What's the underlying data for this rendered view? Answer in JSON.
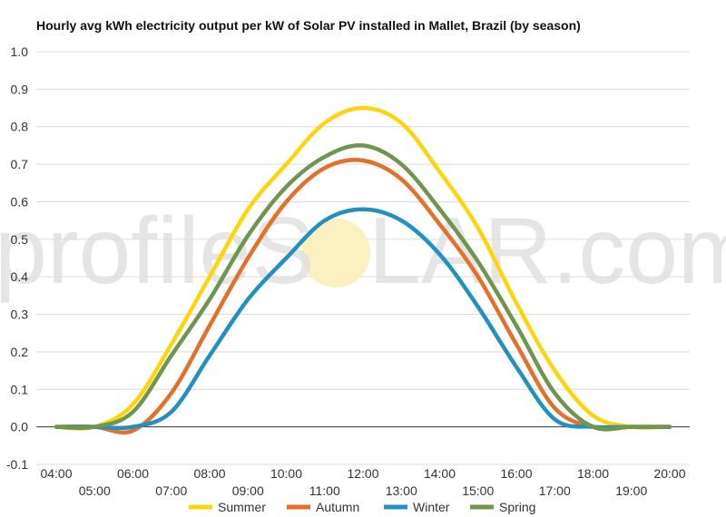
{
  "watermark": {
    "text_left": "profileS",
    "text_right": "LAR.com",
    "sun_color": "#fbf0c0"
  },
  "chart_data": {
    "type": "line",
    "title": "Hourly avg kWh electricity output per kW of Solar PV installed in Mallet, Brazil (by season)",
    "xlabel": "",
    "ylabel": "",
    "ylim": [
      -0.1,
      1.0
    ],
    "yticks": [
      "1.0",
      "0.9",
      "0.8",
      "0.7",
      "0.6",
      "0.5",
      "0.4",
      "0.3",
      "0.2",
      "0.1",
      "0.0",
      "-0.1"
    ],
    "grid": true,
    "legend_position": "bottom",
    "x": [
      "04:00",
      "05:00",
      "06:00",
      "07:00",
      "08:00",
      "09:00",
      "10:00",
      "11:00",
      "12:00",
      "13:00",
      "14:00",
      "15:00",
      "16:00",
      "17:00",
      "18:00",
      "19:00",
      "20:00"
    ],
    "series": [
      {
        "name": "Summer",
        "color": "#fdd50d",
        "values": [
          0.0,
          0.0,
          0.06,
          0.22,
          0.4,
          0.58,
          0.7,
          0.81,
          0.85,
          0.81,
          0.68,
          0.53,
          0.33,
          0.15,
          0.03,
          0.0,
          0.0
        ]
      },
      {
        "name": "Autumn",
        "color": "#e4712b",
        "values": [
          0.0,
          0.0,
          -0.01,
          0.09,
          0.27,
          0.45,
          0.6,
          0.69,
          0.71,
          0.66,
          0.54,
          0.4,
          0.22,
          0.05,
          0.0,
          0.0,
          0.0
        ]
      },
      {
        "name": "Winter",
        "color": "#2291c0",
        "values": [
          0.0,
          0.0,
          0.0,
          0.04,
          0.19,
          0.34,
          0.45,
          0.55,
          0.58,
          0.55,
          0.46,
          0.32,
          0.16,
          0.02,
          0.0,
          0.0,
          0.0
        ]
      },
      {
        "name": "Spring",
        "color": "#70954f",
        "values": [
          0.0,
          0.0,
          0.04,
          0.19,
          0.34,
          0.51,
          0.64,
          0.72,
          0.75,
          0.7,
          0.58,
          0.44,
          0.27,
          0.09,
          0.0,
          0.0,
          0.0
        ]
      }
    ]
  }
}
